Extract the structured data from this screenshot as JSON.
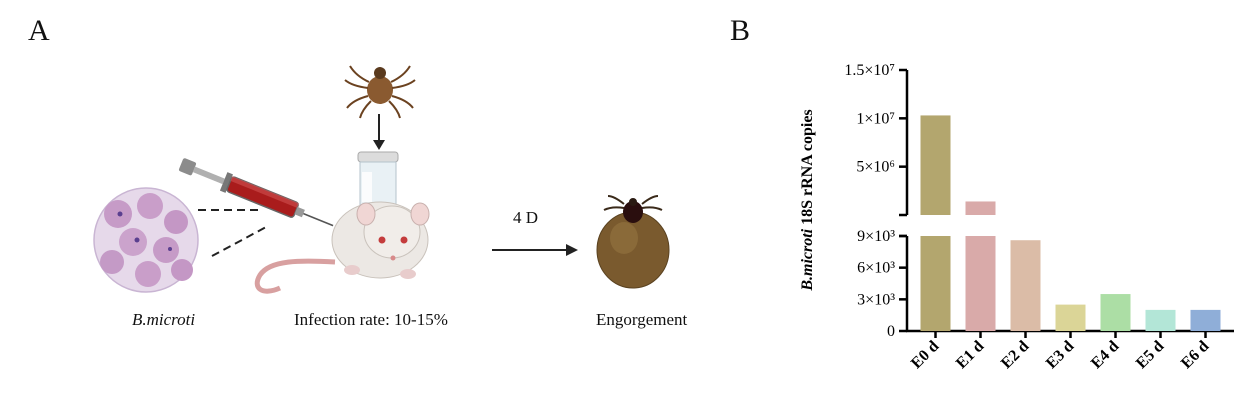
{
  "panels": {
    "a_label": "A",
    "b_label": "B"
  },
  "schematic": {
    "pathogen_label": "B.microti",
    "infection_label": "Infection rate: 10-15%",
    "duration_label": "4 D",
    "outcome_label": "Engorgement"
  },
  "chart_data": {
    "type": "bar",
    "ylabel_italic": "B.microti",
    "ylabel_rest": " 18S rRNA copies",
    "categories": [
      "E0 d",
      "E1 d",
      "E2 d",
      "E3 d",
      "E4 d",
      "E5 d",
      "E6 d"
    ],
    "values": [
      10300000,
      1400000,
      8600,
      2500,
      3500,
      2000,
      2000
    ],
    "colors": [
      "#b3a66e",
      "#d9aaa9",
      "#dbbca7",
      "#dbd597",
      "#acdea5",
      "#b3e6d7",
      "#8faed8"
    ],
    "axis_break": true,
    "lower_ticks": [
      "0",
      "3×10³",
      "6×10³",
      "9×10³"
    ],
    "lower_tick_values": [
      0,
      3000,
      6000,
      9000
    ],
    "upper_ticks": [
      "5×10⁶",
      "1×10⁷",
      "1.5×10⁷"
    ],
    "upper_tick_values": [
      5000000,
      10000000,
      15000000
    ],
    "lower_ylim": [
      0,
      9000
    ],
    "upper_ylim": [
      0,
      15000000
    ]
  }
}
